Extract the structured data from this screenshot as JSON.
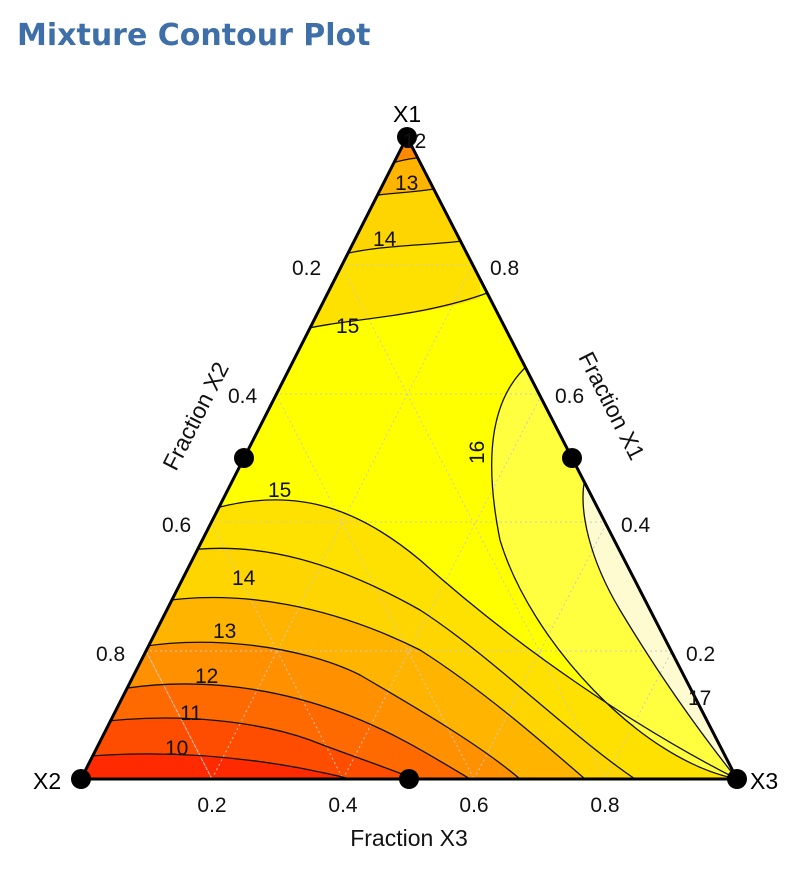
{
  "title": "Mixture Contour Plot",
  "chart_data": {
    "type": "ternary-contour",
    "vertices": {
      "top": "X1",
      "left": "X2",
      "right": "X3"
    },
    "axes": {
      "left": {
        "title": "Fraction X2",
        "ticks": [
          "0.2",
          "0.4",
          "0.6",
          "0.8"
        ]
      },
      "right": {
        "title": "Fraction X1",
        "ticks": [
          "0.8",
          "0.6",
          "0.4",
          "0.2"
        ]
      },
      "bottom": {
        "title": "Fraction X3",
        "ticks": [
          "0.2",
          "0.4",
          "0.6",
          "0.8"
        ]
      }
    },
    "contour_levels": [
      10,
      11,
      12,
      13,
      14,
      15,
      16,
      17
    ],
    "contour_labels": [
      "10",
      "11",
      "12",
      "13",
      "14",
      "15",
      "15",
      "14",
      "13",
      "12",
      "16",
      "17"
    ],
    "design_points": [
      {
        "x1": 1,
        "x2": 0,
        "x3": 0
      },
      {
        "x1": 0,
        "x2": 1,
        "x3": 0
      },
      {
        "x1": 0,
        "x2": 0,
        "x3": 1
      },
      {
        "x1": 0.5,
        "x2": 0.5,
        "x3": 0
      },
      {
        "x1": 0.5,
        "x2": 0,
        "x3": 0.5
      },
      {
        "x1": 0,
        "x2": 0.5,
        "x3": 0.5
      }
    ],
    "grid": true,
    "colors": {
      "low": "#ff2a00",
      "mid": "#ffd700",
      "high": "#ffff00",
      "top_band": "#fffbd0",
      "outline": "#000000"
    }
  }
}
